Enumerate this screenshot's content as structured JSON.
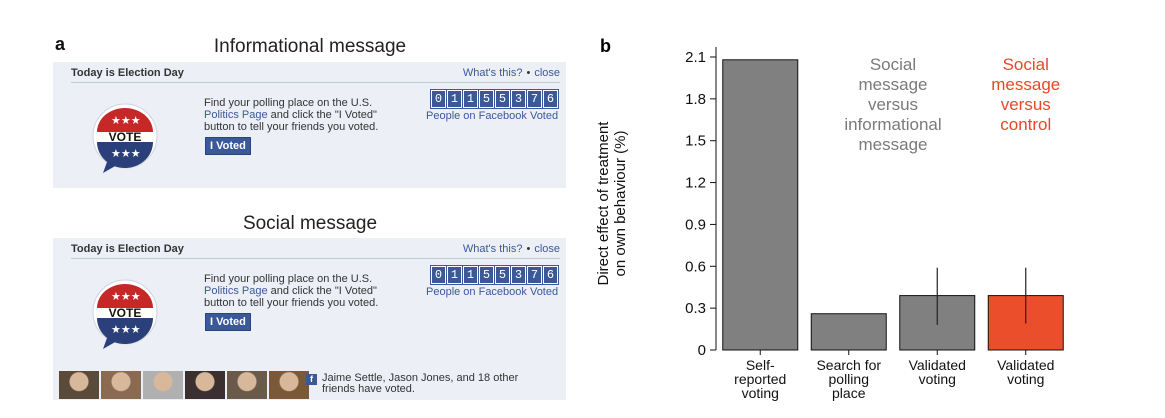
{
  "panel_a": {
    "letter": "a",
    "informational": {
      "heading": "Informational message",
      "box_title": "Today is Election Day",
      "whats_this": "What's this?",
      "close": "close",
      "body_line1": "Find your polling place on the U.S.",
      "body_link": "Politics Page",
      "body_line2": " and click the \"I Voted\"",
      "body_line3": "button to tell your friends you voted.",
      "button_label": "I Voted",
      "vote_label": "VOTE",
      "counter_digits": [
        "0",
        "1",
        "1",
        "5",
        "5",
        "3",
        "7",
        "6"
      ],
      "counter_caption": "People on Facebook Voted"
    },
    "social": {
      "heading": "Social message",
      "box_title": "Today is Election Day",
      "whats_this": "What's this?",
      "close": "close",
      "body_line1": "Find your polling place on the U.S.",
      "body_link": "Politics Page",
      "body_line2": " and click the \"I Voted\"",
      "body_line3": "button to tell your friends you voted.",
      "button_label": "I Voted",
      "vote_label": "VOTE",
      "counter_digits": [
        "0",
        "1",
        "1",
        "5",
        "5",
        "3",
        "7",
        "6"
      ],
      "counter_caption": "People on Facebook Voted",
      "friends_line1": "Jaime Settle, Jason Jones, and 18 other",
      "friends_line2": "friends have voted.",
      "fb_glyph": "f",
      "friend_colors": [
        "#5a4a3a",
        "#8a6a50",
        "#b0b0b0",
        "#3a3030",
        "#6a5a4a",
        "#7a5838"
      ]
    }
  },
  "chart_data": {
    "type": "bar",
    "panel_letter": "b",
    "ylabel_line1": "Direct effect of treatment",
    "ylabel_line2": "on own behaviour (%)",
    "ylim": [
      0,
      2.1
    ],
    "yticks": [
      0,
      0.3,
      0.6,
      0.9,
      1.2,
      1.5,
      1.8,
      2.1
    ],
    "ytick_labels": [
      "0",
      "0.3",
      "0.6",
      "0.9",
      "1.2",
      "1.5",
      "1.8",
      "2.1"
    ],
    "categories": [
      [
        "Self-",
        "reported",
        "voting"
      ],
      [
        "Search for",
        "polling",
        "place"
      ],
      [
        "Validated",
        "voting"
      ],
      [
        "Validated",
        "voting"
      ]
    ],
    "values": [
      2.08,
      0.26,
      0.39,
      0.39
    ],
    "error_low": [
      null,
      null,
      0.18,
      0.19
    ],
    "error_high": [
      null,
      null,
      0.59,
      0.59
    ],
    "bar_colors": [
      "#808080",
      "#808080",
      "#808080",
      "#ea4e2b"
    ],
    "annotations": [
      {
        "lines": [
          "Social",
          "message",
          "versus",
          "informational",
          "message"
        ],
        "color": "#7a7a7a"
      },
      {
        "lines": [
          "Social",
          "message",
          "versus",
          "control"
        ],
        "color": "#e8472a"
      }
    ]
  }
}
